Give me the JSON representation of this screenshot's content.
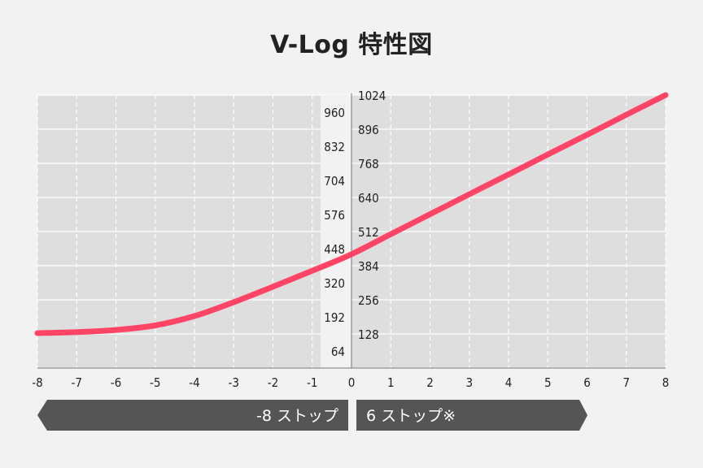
{
  "title": "V-Log 特性図",
  "banner": {
    "left_label": "-8 ストップ",
    "right_label": "6 ストップ※"
  },
  "colors": {
    "background": "#f2f2f2",
    "plot_bg": "#dedede",
    "curve": "#ff4466",
    "banner": "#555555"
  },
  "chart_data": {
    "type": "line",
    "title": "V-Log 特性図",
    "xlabel": "",
    "ylabel": "",
    "xlim": [
      -8,
      8
    ],
    "ylim": [
      0,
      1024
    ],
    "x_ticks": [
      -8,
      -7,
      -6,
      -5,
      -4,
      -3,
      -2,
      -1,
      0,
      1,
      2,
      3,
      4,
      5,
      6,
      7,
      8
    ],
    "y_ticks_left": [
      64,
      192,
      320,
      448,
      576,
      704,
      832,
      960
    ],
    "y_ticks_right": [
      128,
      256,
      384,
      512,
      640,
      768,
      896,
      1024
    ],
    "grid": true,
    "series": [
      {
        "name": "V-Log",
        "x": [
          -8,
          -7,
          -6,
          -5,
          -4,
          -3,
          -2,
          -1,
          0,
          1,
          2,
          3,
          4,
          5,
          6,
          7,
          8
        ],
        "y": [
          131,
          135,
          143,
          160,
          195,
          247,
          305,
          365,
          427,
          502,
          577,
          652,
          726,
          801,
          875,
          950,
          1024
        ]
      }
    ],
    "annotations": [
      "-8 ストップ",
      "6 ストップ※"
    ]
  }
}
